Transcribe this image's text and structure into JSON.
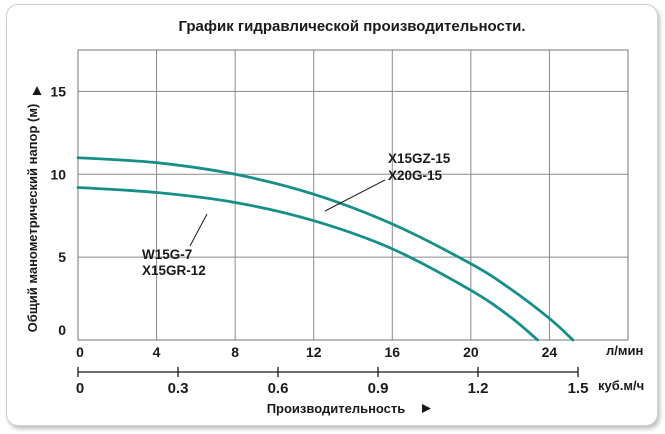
{
  "chart_data": {
    "type": "line",
    "title": "График гидравлической производительности.",
    "ylabel": "Общий манометрический напор (м)",
    "ylim": [
      0,
      17.5
    ],
    "y_ticks": [
      "0",
      "5",
      "10",
      "15"
    ],
    "x_primary": {
      "unit": "л/мин",
      "range": [
        0,
        28
      ],
      "ticks": [
        "0",
        "4",
        "8",
        "12",
        "16",
        "20",
        "24"
      ]
    },
    "x_secondary": {
      "unit": "куб.м/ч",
      "label": "Производительность",
      "ticks": [
        "0",
        "0.3",
        "0.6",
        "0.9",
        "1.2",
        "1.5"
      ]
    },
    "grid": true,
    "series": [
      {
        "name": "X15GZ-15 / X20G-15",
        "label_lines": [
          "X15GZ-15",
          "X20G-15"
        ],
        "color": "#168f8a",
        "x": [
          0,
          4,
          8,
          12,
          16,
          20,
          22,
          24,
          25.2
        ],
        "y": [
          11,
          10.7,
          10,
          8.8,
          7,
          4.6,
          3.1,
          1.3,
          0
        ]
      },
      {
        "name": "W15G-7 / X15GR-12",
        "label_lines": [
          "W15G-7",
          "X15GR-12"
        ],
        "color": "#168f8a",
        "x": [
          0,
          4,
          8,
          12,
          16,
          20,
          22,
          23.4
        ],
        "y": [
          9.2,
          8.9,
          8.3,
          7.2,
          5.5,
          3.0,
          1.4,
          0
        ]
      }
    ]
  }
}
